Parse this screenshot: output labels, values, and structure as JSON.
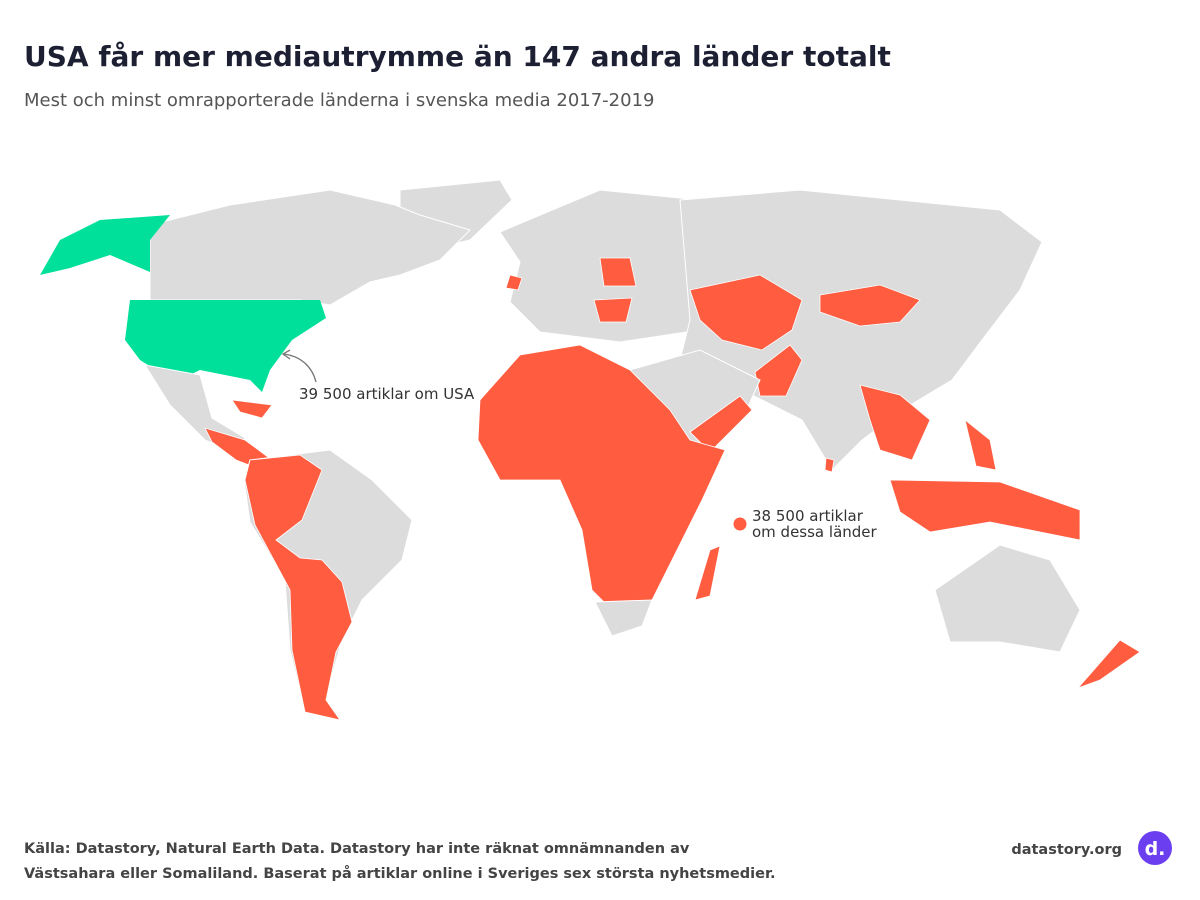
{
  "header": {
    "title": "USA får mer mediautrymme än 147 andra länder totalt",
    "subtitle": "Mest och minst omrapporterade länderna i svenska media 2017-2019"
  },
  "annotations": [
    {
      "lines": [
        "39 500 artiklar om USA"
      ]
    },
    {
      "lines": [
        "38 500 artiklar",
        "om dessa länder"
      ]
    }
  ],
  "footer": {
    "source": [
      "Källa: Datastory, Natural Earth Data. Datastory har inte räknat omnämnanden av",
      "Västsahara eller Somaliland. Baserat på artiklar online i Sveriges sex största nyhetsmedier."
    ],
    "brand": "datastory.org",
    "logo": "d."
  }
}
